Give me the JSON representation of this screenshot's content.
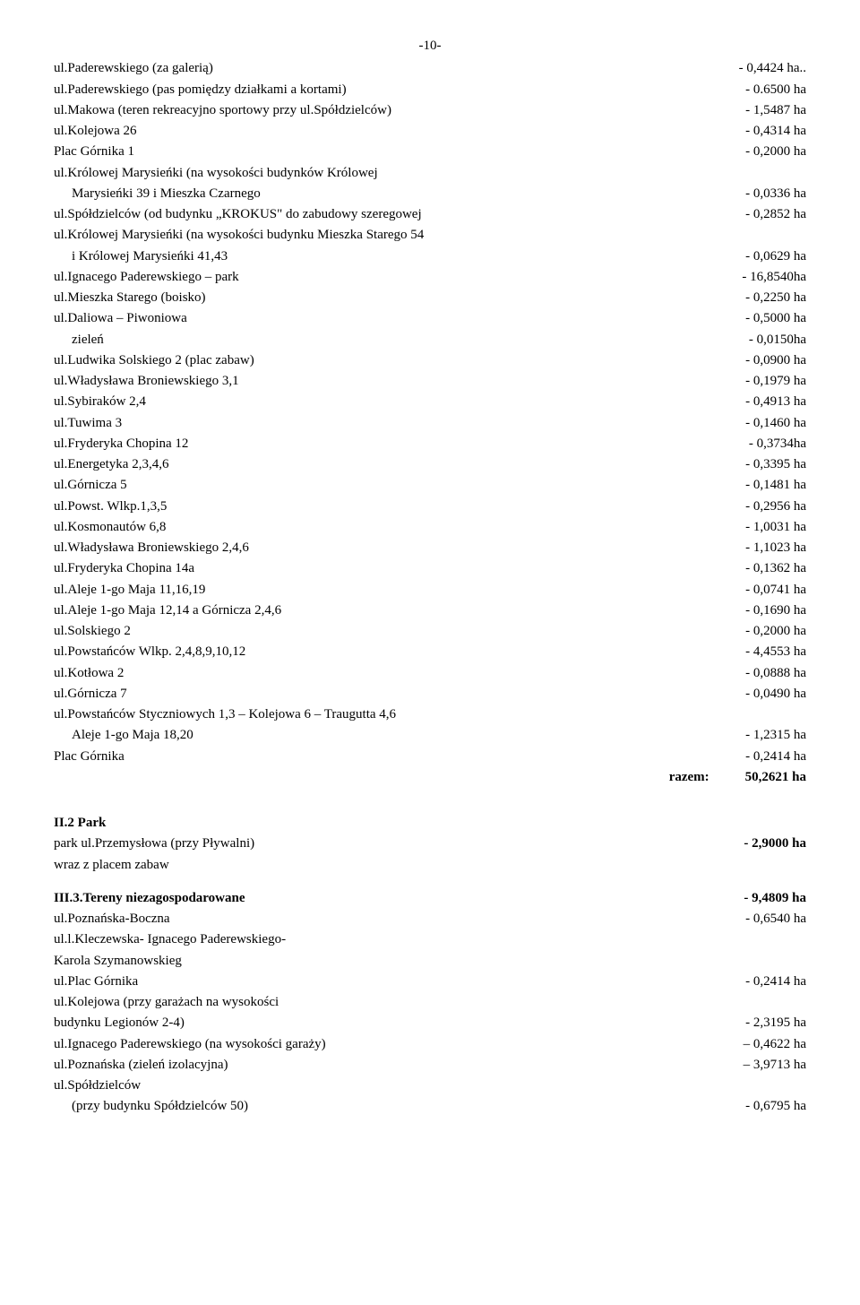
{
  "page_number_top": "-10-",
  "list1": [
    {
      "left": "ul.Paderewskiego (za galerią)",
      "right": "- 0,4424 ha.."
    },
    {
      "left": "ul.Paderewskiego (pas pomiędzy działkami a kortami)",
      "right": "- 0.6500 ha"
    },
    {
      "left": "ul.Makowa (teren rekreacyjno sportowy przy ul.Spółdzielców)",
      "right": "- 1,5487 ha"
    },
    {
      "left": "ul.Kolejowa 26",
      "right": "- 0,4314 ha"
    },
    {
      "left": "Plac Górnika 1",
      "right": "- 0,2000 ha"
    },
    {
      "left": "ul.Królowej Marysieńki (na wysokości budynków Królowej",
      "right": ""
    },
    {
      "left": "Marysieńki 39 i Mieszka Czarnego",
      "right": "- 0,0336 ha",
      "indent": 1
    },
    {
      "left": "ul.Spółdzielców (od budynku „KROKUS\" do zabudowy szeregowej",
      "right": "- 0,2852 ha"
    },
    {
      "left": "ul.Królowej Marysieńki (na wysokości budynku Mieszka Starego 54",
      "right": ""
    },
    {
      "left": "i Królowej Marysieńki 41,43",
      "right": "- 0,0629 ha",
      "indent": 1
    },
    {
      "left": "ul.Ignacego Paderewskiego – park",
      "right": "- 16,8540ha"
    },
    {
      "left": "ul.Mieszka Starego  (boisko)",
      "right": "- 0,2250 ha"
    },
    {
      "left": "ul.Daliowa – Piwoniowa",
      "right": "- 0,5000 ha"
    },
    {
      "left": "zieleń",
      "right": "- 0,0150ha",
      "indent": 1
    },
    {
      "left": "ul.Ludwika Solskiego 2 (plac zabaw)",
      "right": "- 0,0900 ha"
    },
    {
      "left": "ul.Władysława Broniewskiego 3,1",
      "right": "- 0,1979 ha"
    },
    {
      "left": "ul.Sybiraków 2,4",
      "right": "- 0,4913 ha"
    },
    {
      "left": "ul.Tuwima 3",
      "right": "- 0,1460 ha"
    },
    {
      "left": "ul.Fryderyka Chopina 12",
      "right": "- 0,3734ha"
    },
    {
      "left": "ul.Energetyka 2,3,4,6",
      "right": "- 0,3395 ha"
    },
    {
      "left": "ul.Górnicza 5",
      "right": "- 0,1481 ha"
    },
    {
      "left": "ul.Powst. Wlkp.1,3,5",
      "right": "- 0,2956 ha"
    },
    {
      "left": "ul.Kosmonautów 6,8",
      "right": "- 1,0031 ha"
    },
    {
      "left": "ul.Władysława Broniewskiego 2,4,6",
      "right": "- 1,1023 ha"
    },
    {
      "left": "ul.Fryderyka Chopina 14a",
      "right": "- 0,1362 ha"
    },
    {
      "left": "ul.Aleje 1-go Maja 11,16,19",
      "right": "- 0,0741 ha"
    },
    {
      "left": "ul.Aleje 1-go Maja 12,14 a Górnicza 2,4,6",
      "right": "- 0,1690 ha"
    },
    {
      "left": "ul.Solskiego 2",
      "right": "- 0,2000 ha"
    },
    {
      "left": "ul.Powstańców Wlkp. 2,4,8,9,10,12",
      "right": "- 4,4553 ha"
    },
    {
      "left": "ul.Kotłowa 2",
      "right": "- 0,0888 ha"
    },
    {
      "left": "ul.Górnicza 7",
      "right": "- 0,0490 ha"
    },
    {
      "left": "ul.Powstańców Styczniowych 1,3 – Kolejowa 6 – Traugutta 4,6",
      "right": ""
    },
    {
      "left": "Aleje 1-go Maja 18,20",
      "right": "- 1,2315 ha",
      "indent": 1
    },
    {
      "left": "Plac Górnika",
      "right": "-  0,2414 ha"
    }
  ],
  "razem": {
    "label": "razem:",
    "value": "50,2621  ha"
  },
  "section2_heading": "II.2 Park",
  "section2_row": {
    "left": "park ul.Przemysłowa (przy Pływalni)",
    "right": "- 2,9000 ha"
  },
  "section2_sub": "wraz z placem  zabaw",
  "section3": {
    "heading": {
      "left": "III.3.Tereny niezagospodarowane",
      "right": "- 9,4809 ha"
    },
    "rows": [
      {
        "left": "ul.Poznańska-Boczna",
        "right": "- 0,6540 ha"
      },
      {
        "left": "ul.l.Kleczewska- Ignacego Paderewskiego-",
        "right": ""
      },
      {
        "left": "Karola Szymanowskieg",
        "right": ""
      },
      {
        "left": "ul.Plac Górnika",
        "right": "- 0,2414 ha"
      },
      {
        "left": "ul.Kolejowa (przy garażach na wysokości",
        "right": ""
      },
      {
        "left": "budynku Legionów 2-4)",
        "right": "- 2,3195 ha"
      },
      {
        "left": "ul.Ignacego Paderewskiego (na wysokości garaży)",
        "right": "– 0,4622 ha"
      },
      {
        "left": "ul.Poznańska (zieleń izolacyjna)",
        "right": "– 3,9713 ha"
      },
      {
        "left": "ul.Spółdzielców",
        "right": ""
      },
      {
        "left": "(przy budynku Spółdzielców 50)",
        "right": "- 0,6795 ha",
        "indent": 1
      }
    ]
  }
}
